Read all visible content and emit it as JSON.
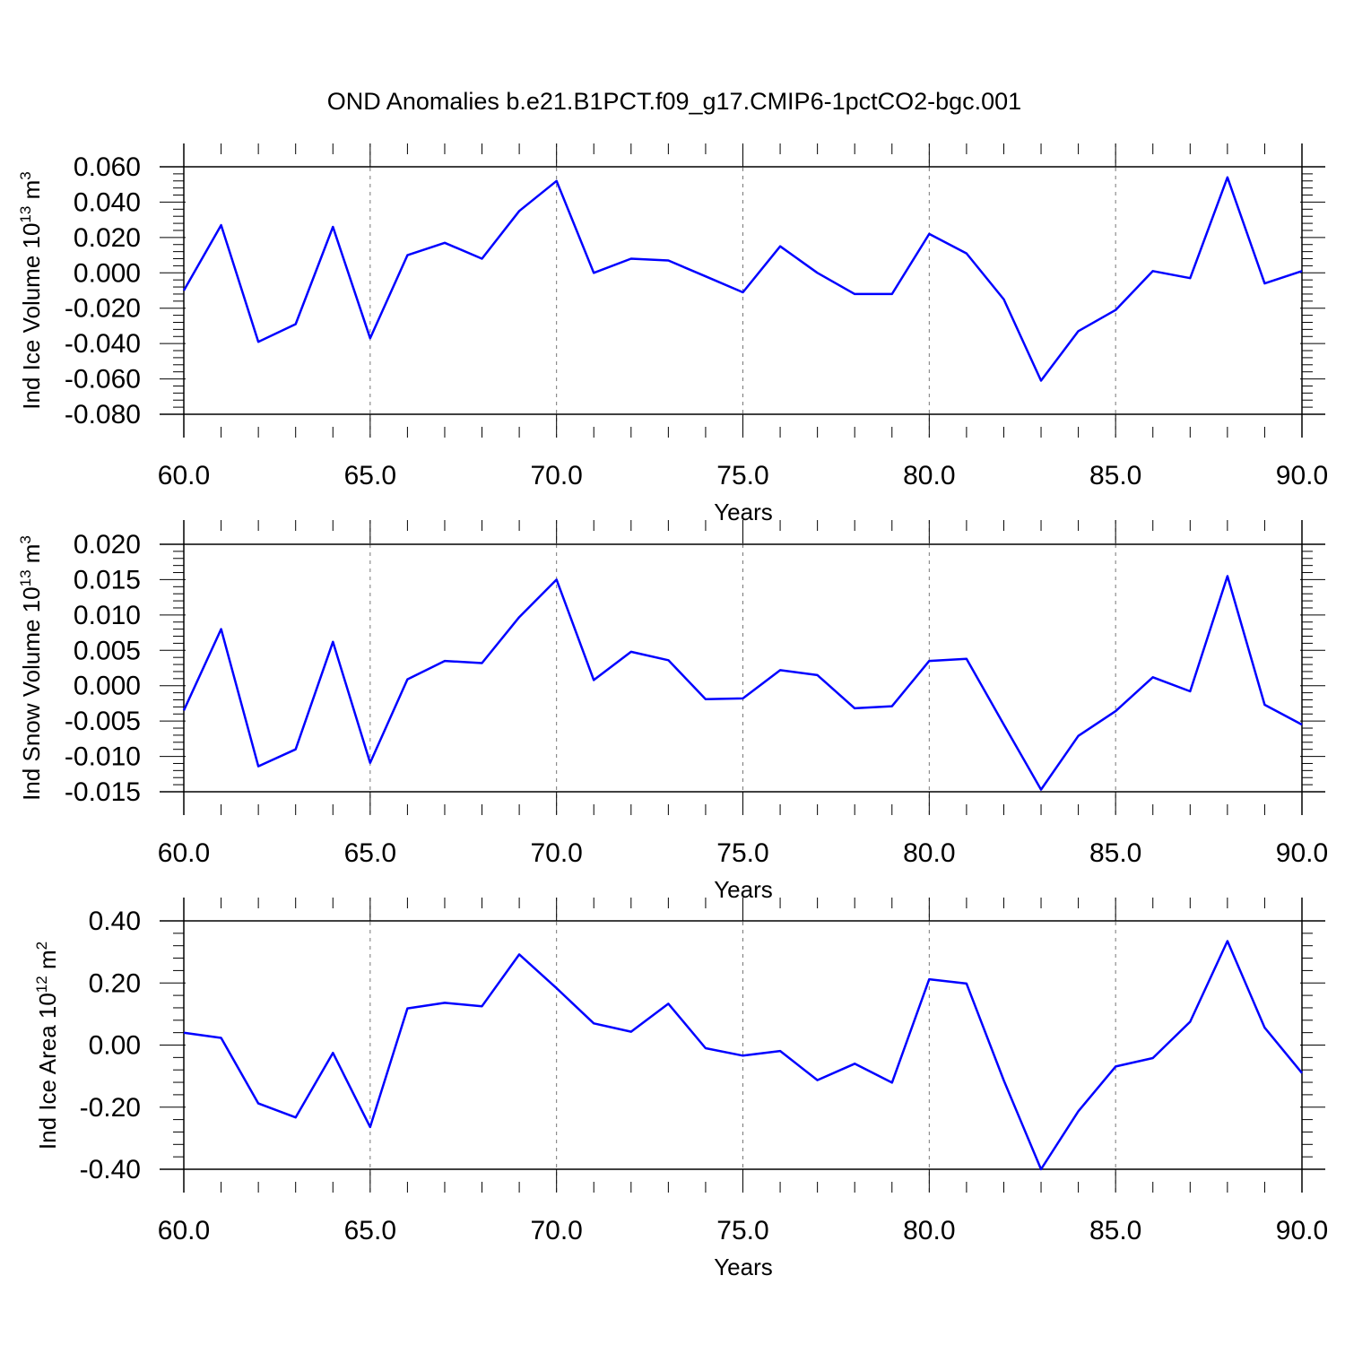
{
  "figure": {
    "title": "OND Anomalies b.e21.B1PCT.f09_g17.CMIP6-1pctCO2-bgc.001"
  },
  "chart_data": [
    {
      "type": "line",
      "ylabel": "Ind Ice Volume 10",
      "ylabel_exp": "13",
      "ylabel_unit": " m",
      "ylabel_unit_exp": "3",
      "xlabel": "Years",
      "xlim": [
        60,
        90
      ],
      "ylim": [
        -0.08,
        0.07
      ],
      "xticks": [
        "60.0",
        "65.0",
        "70.0",
        "75.0",
        "80.0",
        "85.0",
        "90.0"
      ],
      "yticks": [
        "0.060",
        "0.040",
        "0.020",
        "0.000",
        "-0.020",
        "-0.040",
        "-0.060",
        "-0.080"
      ],
      "ytick_values": [
        0.06,
        0.04,
        0.02,
        0.0,
        -0.02,
        -0.04,
        -0.06,
        -0.08
      ],
      "grid": "vertical dashed at major x ticks",
      "line_color": "#0000ff",
      "x": [
        60,
        61,
        62,
        63,
        64,
        65,
        66,
        67,
        68,
        69,
        70,
        71,
        72,
        73,
        74,
        75,
        76,
        77,
        78,
        79,
        80,
        81,
        82,
        83,
        84,
        85,
        86,
        87,
        88,
        89,
        90
      ],
      "values": [
        -0.01,
        0.027,
        -0.039,
        -0.029,
        0.026,
        -0.037,
        0.01,
        0.017,
        0.008,
        0.035,
        0.052,
        0.0,
        0.008,
        0.007,
        -0.002,
        -0.011,
        0.015,
        0.0,
        -0.012,
        -0.012,
        0.022,
        0.011,
        -0.015,
        -0.061,
        -0.033,
        -0.021,
        0.001,
        -0.003,
        0.054,
        -0.006,
        0.001
      ]
    },
    {
      "type": "line",
      "ylabel": "Ind Snow Volume 10",
      "ylabel_exp": "13",
      "ylabel_unit": " m",
      "ylabel_unit_exp": "3",
      "xlabel": "Years",
      "xlim": [
        60,
        90
      ],
      "ylim": [
        -0.015,
        0.02
      ],
      "xticks": [
        "60.0",
        "65.0",
        "70.0",
        "75.0",
        "80.0",
        "85.0",
        "90.0"
      ],
      "yticks": [
        "0.020",
        "0.015",
        "0.010",
        "0.005",
        "0.000",
        "-0.005",
        "-0.010",
        "-0.015"
      ],
      "ytick_values": [
        0.02,
        0.015,
        0.01,
        0.005,
        0.0,
        -0.005,
        -0.01,
        -0.015
      ],
      "grid": "vertical dashed at major x ticks",
      "line_color": "#0000ff",
      "x": [
        60,
        61,
        62,
        63,
        64,
        65,
        66,
        67,
        68,
        69,
        70,
        71,
        72,
        73,
        74,
        75,
        76,
        77,
        78,
        79,
        80,
        81,
        82,
        83,
        84,
        85,
        86,
        87,
        88,
        89,
        90
      ],
      "values": [
        -0.0035,
        0.008,
        -0.0114,
        -0.009,
        0.0062,
        -0.0109,
        0.0009,
        0.0035,
        0.0032,
        0.0097,
        0.015,
        0.0008,
        0.0048,
        0.0036,
        -0.0019,
        -0.0018,
        0.0022,
        0.0015,
        -0.0032,
        -0.0029,
        0.0035,
        0.0038,
        -0.0055,
        -0.0147,
        -0.0071,
        -0.0036,
        0.0012,
        -0.0008,
        0.0155,
        -0.0027,
        -0.0055
      ]
    },
    {
      "type": "line",
      "ylabel": "Ind Ice Area 10",
      "ylabel_exp": "12",
      "ylabel_unit": " m",
      "ylabel_unit_exp": "2",
      "xlabel": "Years",
      "xlim": [
        60,
        90
      ],
      "ylim": [
        -0.4,
        0.4
      ],
      "xticks": [
        "60.0",
        "65.0",
        "70.0",
        "75.0",
        "80.0",
        "85.0",
        "90.0"
      ],
      "yticks": [
        "0.40",
        "0.20",
        "0.00",
        "-0.20",
        "-0.40"
      ],
      "ytick_values": [
        0.4,
        0.2,
        0.0,
        -0.2,
        -0.4
      ],
      "grid": "vertical dashed at major x ticks",
      "line_color": "#0000ff",
      "x": [
        60,
        61,
        62,
        63,
        64,
        65,
        66,
        67,
        68,
        69,
        70,
        71,
        72,
        73,
        74,
        75,
        76,
        77,
        78,
        79,
        80,
        81,
        82,
        83,
        84,
        85,
        86,
        87,
        88,
        89,
        90
      ],
      "values": [
        0.04,
        0.023,
        -0.188,
        -0.233,
        -0.025,
        -0.264,
        0.118,
        0.136,
        0.125,
        0.292,
        0.183,
        0.07,
        0.043,
        0.133,
        -0.01,
        -0.034,
        -0.019,
        -0.113,
        -0.06,
        -0.121,
        0.212,
        0.198,
        -0.114,
        -0.4,
        -0.213,
        -0.069,
        -0.042,
        0.075,
        0.335,
        0.056,
        -0.09
      ]
    }
  ]
}
